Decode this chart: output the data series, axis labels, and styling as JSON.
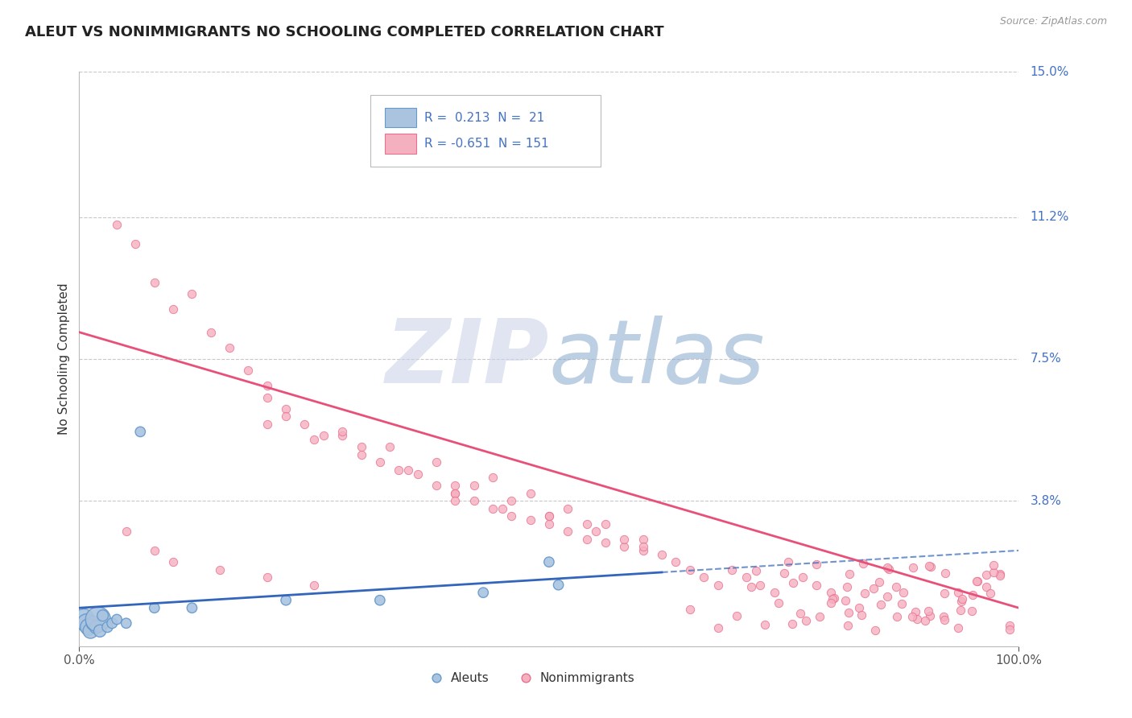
{
  "title": "ALEUT VS NONIMMIGRANTS NO SCHOOLING COMPLETED CORRELATION CHART",
  "source_text": "Source: ZipAtlas.com",
  "ylabel": "No Schooling Completed",
  "xmin": 0.0,
  "xmax": 1.0,
  "ymin": 0.0,
  "ymax": 0.15,
  "yticks": [
    0.0,
    0.038,
    0.075,
    0.112,
    0.15
  ],
  "ytick_labels": [
    "",
    "3.8%",
    "7.5%",
    "11.2%",
    "15.0%"
  ],
  "background_color": "#ffffff",
  "grid_color": "#c8c8c8",
  "aleut_color": "#aac4e0",
  "aleut_edge_color": "#6699cc",
  "nonimm_color": "#f5b0c0",
  "nonimm_edge_color": "#e87090",
  "aleut_line_color": "#3366bb",
  "nonimm_line_color": "#e8507a",
  "R_aleut": 0.213,
  "N_aleut": 21,
  "R_nonimm": -0.651,
  "N_nonimm": 151,
  "title_color": "#222222",
  "source_color": "#999999",
  "ylabel_color": "#333333",
  "tick_color": "#555555",
  "right_label_color": "#4472c4",
  "legend_label_color": "#4472c4",
  "watermark_zip_color": "#ccd4e8",
  "watermark_atlas_color": "#88a8cc"
}
